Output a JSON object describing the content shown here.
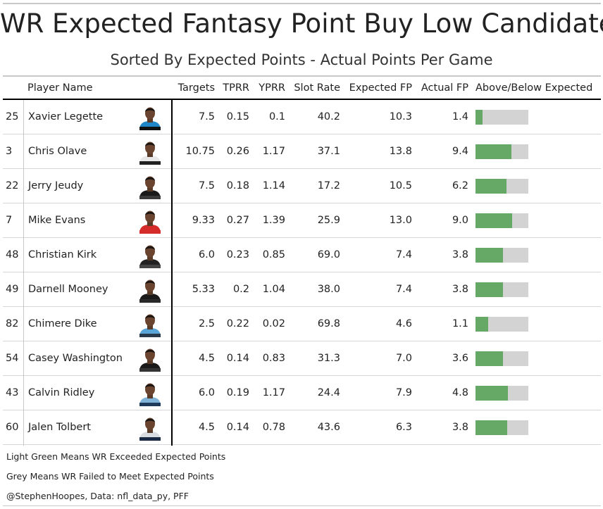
{
  "title": "WR Expected Fantasy Point Buy Low Candidates",
  "subtitle": "Sorted By Expected Points - Actual Points Per Game",
  "columns": {
    "player": "Player Name",
    "targets": "Targets",
    "tprr": "TPRR",
    "yprr": "YPRR",
    "slot": "Slot Rate",
    "exp": "Expected FP",
    "act": "Actual FP",
    "bar": "Above/Below Expected"
  },
  "colors": {
    "above": "#66a866",
    "below": "#d3d3d3"
  },
  "chart_data": {
    "type": "table",
    "columns": [
      "",
      "Player Name",
      "Targets",
      "TPRR",
      "YPRR",
      "Slot Rate",
      "Expected FP",
      "Actual FP",
      "Above/Below Expected"
    ],
    "rows": [
      {
        "rank": "25",
        "name": "Xavier Legette",
        "targets": "7.5",
        "tprr": "0.15",
        "yprr": "0.1",
        "slot": "40.2",
        "exp": "10.3",
        "act": "1.4",
        "jersey": "#1f87c7",
        "pants": "#111111"
      },
      {
        "rank": "3",
        "name": "Chris Olave",
        "targets": "10.75",
        "tprr": "0.26",
        "yprr": "1.17",
        "slot": "37.1",
        "exp": "13.8",
        "act": "9.4",
        "jersey": "#e8e8e8",
        "pants": "#222222"
      },
      {
        "rank": "22",
        "name": "Jerry Jeudy",
        "targets": "7.5",
        "tprr": "0.18",
        "yprr": "1.14",
        "slot": "17.2",
        "exp": "10.5",
        "act": "6.2",
        "jersey": "#1a1a1a",
        "pants": "#3a3a3a"
      },
      {
        "rank": "7",
        "name": "Mike Evans",
        "targets": "9.33",
        "tprr": "0.27",
        "yprr": "1.39",
        "slot": "25.9",
        "exp": "13.0",
        "act": "9.0",
        "jersey": "#d52b2b",
        "pants": "#d52b2b"
      },
      {
        "rank": "48",
        "name": "Christian Kirk",
        "targets": "6.0",
        "tprr": "0.23",
        "yprr": "0.85",
        "slot": "69.0",
        "exp": "7.4",
        "act": "3.8",
        "jersey": "#222222",
        "pants": "#444444"
      },
      {
        "rank": "49",
        "name": "Darnell Mooney",
        "targets": "5.33",
        "tprr": "0.2",
        "yprr": "1.04",
        "slot": "38.0",
        "exp": "7.4",
        "act": "3.8",
        "jersey": "#1a1a1a",
        "pants": "#2a2a2a"
      },
      {
        "rank": "82",
        "name": "Chimere Dike",
        "targets": "2.5",
        "tprr": "0.22",
        "yprr": "0.02",
        "slot": "69.8",
        "exp": "4.6",
        "act": "1.1",
        "jersey": "#5aa5d8",
        "pants": "#2a3a4a"
      },
      {
        "rank": "54",
        "name": "Casey Washington",
        "targets": "4.5",
        "tprr": "0.14",
        "yprr": "0.83",
        "slot": "31.3",
        "exp": "7.0",
        "act": "3.6",
        "jersey": "#1a1a1a",
        "pants": "#333333"
      },
      {
        "rank": "43",
        "name": "Calvin Ridley",
        "targets": "6.0",
        "tprr": "0.19",
        "yprr": "1.17",
        "slot": "24.4",
        "exp": "7.9",
        "act": "4.8",
        "jersey": "#7fb3d8",
        "pants": "#1e3a5a"
      },
      {
        "rank": "60",
        "name": "Jalen Tolbert",
        "targets": "4.5",
        "tprr": "0.14",
        "yprr": "0.78",
        "slot": "43.6",
        "exp": "6.3",
        "act": "3.8",
        "jersey": "#d9dce0",
        "pants": "#1b2a44"
      }
    ]
  },
  "footer": {
    "line1": "Light Green Means WR Exceeded Expected Points",
    "line2": "Grey Means WR Failed to Meet Expected Points",
    "credit": "@StephenHoopes, Data: nfl_data_py, PFF"
  }
}
